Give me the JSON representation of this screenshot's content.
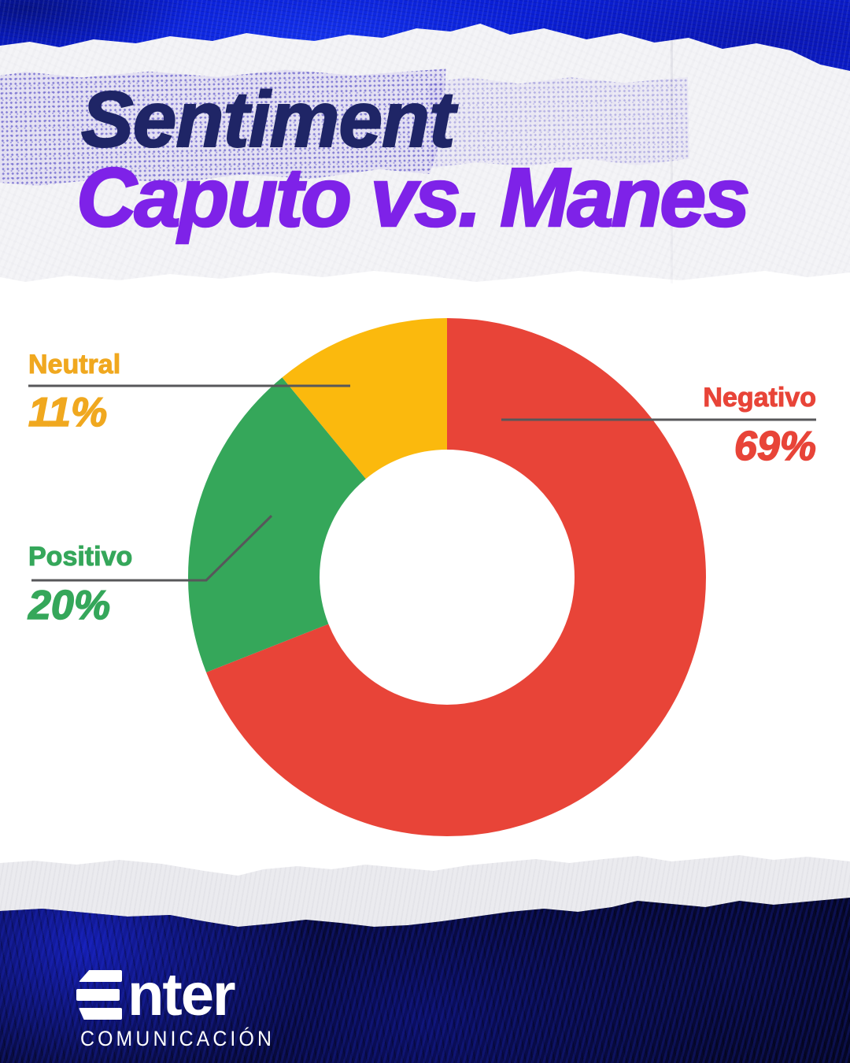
{
  "title": {
    "line1": "Sentiment",
    "line2": "Caputo vs. Manes",
    "line1_color": "#1F2566",
    "line2_color": "#7E22E8"
  },
  "chart_data": {
    "type": "pie",
    "donut": true,
    "title": "Sentiment Caputo vs. Manes",
    "start_angle": "top",
    "direction": "clockwise",
    "total": 100,
    "legend_position": "callouts",
    "segments": [
      {
        "label": "Negativo",
        "value": 69,
        "display": "69%",
        "color": "#E84438"
      },
      {
        "label": "Positivo",
        "value": 20,
        "display": "20%",
        "color": "#35A75A"
      },
      {
        "label": "Neutral",
        "value": 11,
        "display": "11%",
        "color": "#FBB90D"
      }
    ],
    "callout_text_colors": {
      "negativo": "#E84438",
      "positivo": "#35A75A",
      "neutral": "#F0A81F"
    },
    "leader_line_color": "#57575a"
  },
  "footer": {
    "brand": "Enter",
    "tagline": "COMUNICACIÓN"
  },
  "palette": {
    "top_band_blue": "#0A1FD6",
    "bottom_band_dark": "#04051A",
    "paper": "#F4F4F7"
  }
}
